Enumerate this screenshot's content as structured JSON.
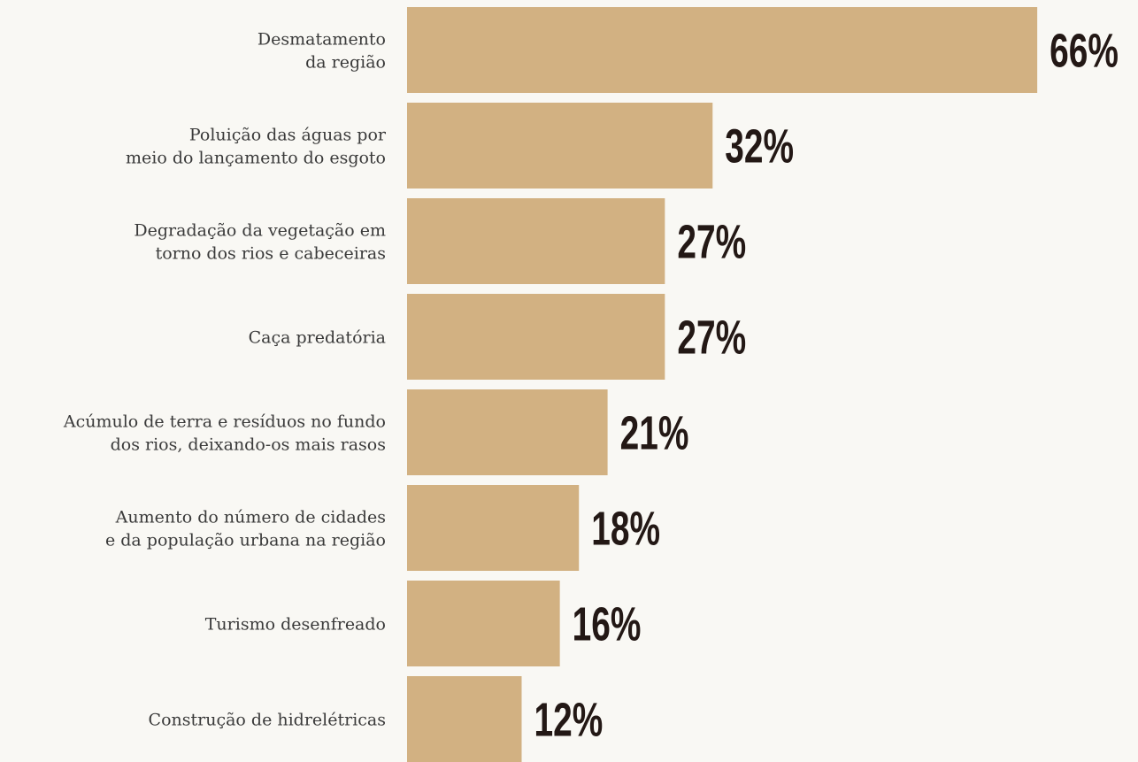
{
  "chart_data": {
    "type": "bar",
    "orientation": "horizontal",
    "color": "#d2b182",
    "categories": [
      [
        "Desmatamento",
        "da região"
      ],
      [
        "Poluição das águas por",
        "meio do lançamento do esgoto"
      ],
      [
        "Degradação da vegetação em",
        "torno dos rios e cabeceiras"
      ],
      [
        "Caça predatória"
      ],
      [
        "Acúmulo de terra e resíduos no fundo",
        "dos rios, deixando-os mais rasos"
      ],
      [
        "Aumento do número de cidades",
        "e da população urbana na região"
      ],
      [
        "Turismo desenfreado"
      ],
      [
        "Construção de hidrelétricas"
      ]
    ],
    "values": [
      66,
      32,
      27,
      27,
      21,
      18,
      16,
      12
    ],
    "value_labels": [
      "66%",
      "32%",
      "27%",
      "27%",
      "21%",
      "18%",
      "16%",
      "12%"
    ]
  }
}
